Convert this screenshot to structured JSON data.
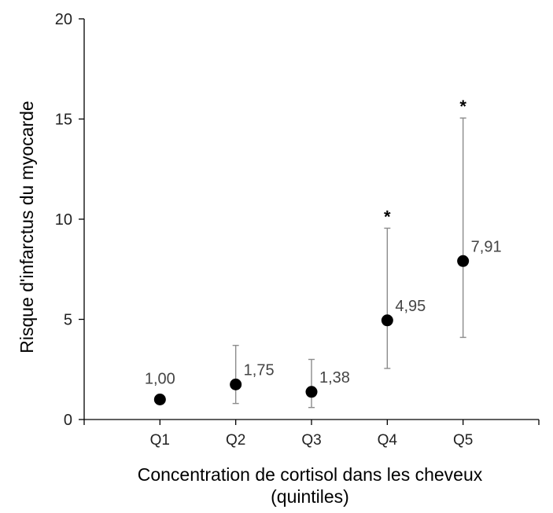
{
  "chart_data": {
    "type": "scatter",
    "title": "",
    "xlabel_lines": [
      "Concentration de cortisol dans les cheveux",
      "(quintiles)"
    ],
    "ylabel": "Risque d'infarctus du myocarde",
    "ylim": [
      0,
      20
    ],
    "yticks": [
      "0",
      "5",
      "10",
      "15",
      "20"
    ],
    "ytick_values": [
      0,
      5,
      10,
      15,
      20
    ],
    "grid": false,
    "legend": "none",
    "categories": [
      "Q1",
      "Q2",
      "Q3",
      "Q4",
      "Q5"
    ],
    "points": [
      {
        "category": "Q1",
        "value": 1.0,
        "label": "1,00",
        "ci_low": null,
        "ci_high": null,
        "significant": false
      },
      {
        "category": "Q2",
        "value": 1.75,
        "label": "1,75",
        "ci_low": 0.8,
        "ci_high": 3.7,
        "significant": false
      },
      {
        "category": "Q3",
        "value": 1.38,
        "label": "1,38",
        "ci_low": 0.6,
        "ci_high": 3.0,
        "significant": false
      },
      {
        "category": "Q4",
        "value": 4.95,
        "label": "4,95",
        "ci_low": 2.55,
        "ci_high": 9.55,
        "significant": true
      },
      {
        "category": "Q5",
        "value": 7.91,
        "label": "7,91",
        "ci_low": 4.1,
        "ci_high": 15.05,
        "significant": true
      }
    ],
    "significance_marker": "*",
    "colors": {
      "point": "#000000",
      "errorbar": "#8c8c8c",
      "axis": "#000000",
      "text": "#222222",
      "value_label": "#444444"
    }
  }
}
